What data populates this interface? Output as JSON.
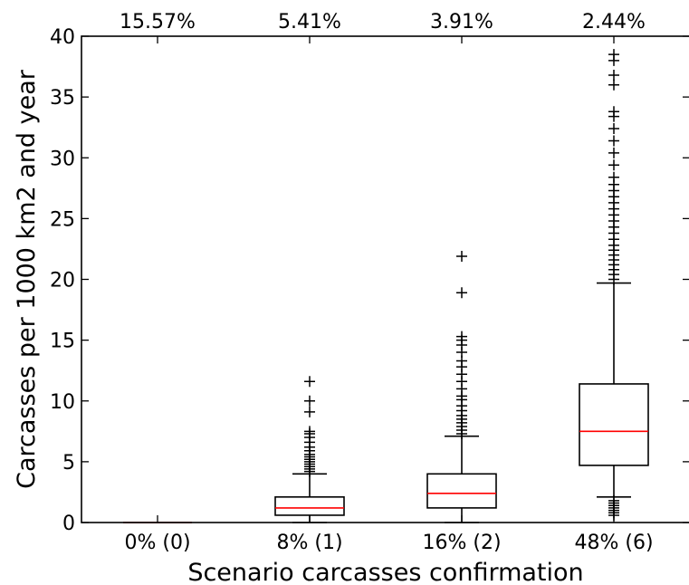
{
  "chart_data": {
    "type": "box",
    "title": "",
    "xlabel": "Scenario carcasses confirmation",
    "ylabel": "Carcasses per 1000 km2 and year",
    "ylim": [
      0,
      40
    ],
    "yticks": [
      0,
      5,
      10,
      15,
      20,
      25,
      30,
      35,
      40
    ],
    "ytick_labels": [
      "0",
      "5",
      "10",
      "15",
      "20",
      "25",
      "30",
      "35",
      "40"
    ],
    "categories": [
      "0% (0)",
      "8% (1)",
      "16% (2)",
      "48% (6)"
    ],
    "top_labels": [
      "15.57%",
      "5.41%",
      "3.91%",
      "2.44%"
    ],
    "median_color": "#ff0000",
    "box_color": "#000000",
    "grid": false,
    "boxes": [
      {
        "category": "0% (0)",
        "whisker_low": 0,
        "q1": 0,
        "median": 0,
        "q3": 0,
        "whisker_high": 0,
        "outliers": []
      },
      {
        "category": "8% (1)",
        "whisker_low": 0,
        "q1": 0.6,
        "median": 1.2,
        "q3": 2.1,
        "whisker_high": 4.0,
        "outliers": [
          4.2,
          4.4,
          4.6,
          4.8,
          5.0,
          5.2,
          5.4,
          5.6,
          5.9,
          6.2,
          6.6,
          7.0,
          7.3,
          7.5,
          9.1,
          10.0,
          11.6
        ]
      },
      {
        "category": "16% (2)",
        "whisker_low": 0,
        "q1": 1.2,
        "median": 2.4,
        "q3": 4.0,
        "whisker_high": 7.1,
        "outliers": [
          7.3,
          7.6,
          7.9,
          8.2,
          8.5,
          8.8,
          9.2,
          9.6,
          10.1,
          10.4,
          11.0,
          11.6,
          12.2,
          12.8,
          13.3,
          14.0,
          14.6,
          15.0,
          15.3,
          18.9,
          21.9
        ]
      },
      {
        "category": "48% (6)",
        "whisker_low": 2.1,
        "q1": 4.7,
        "median": 7.5,
        "q3": 11.4,
        "whisker_high": 19.7,
        "outliers": [
          0.6,
          0.8,
          1.0,
          1.2,
          1.4,
          1.6,
          1.8,
          20.0,
          20.4,
          20.8,
          21.2,
          21.6,
          22.0,
          22.4,
          22.8,
          23.3,
          23.8,
          24.3,
          24.8,
          25.3,
          25.8,
          26.3,
          26.8,
          27.3,
          27.8,
          28.4,
          29.4,
          30.4,
          31.4,
          32.4,
          33.4,
          33.8,
          36.0,
          36.8,
          38.0,
          38.5
        ]
      }
    ]
  }
}
